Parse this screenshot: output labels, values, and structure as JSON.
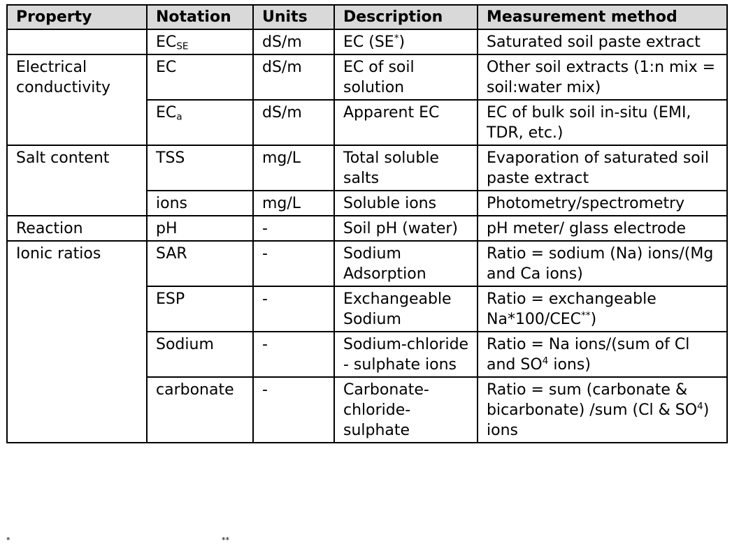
{
  "headers": [
    "Property",
    "Notation",
    "Units",
    "Description",
    "Measurement method"
  ],
  "groups": {
    "ec": "Electrical conductivity",
    "salt": "Salt content",
    "reaction": "Reaction",
    "ionic": "Ionic ratios"
  },
  "rows": {
    "ecse": {
      "notation_base": "EC",
      "notation_sub": "SE",
      "units": "dS/m",
      "desc_text": "EC (SE",
      "desc_sup": "*",
      "desc_close": ")",
      "method": "Saturated soil paste extract"
    },
    "ec": {
      "notation": "EC",
      "units": "dS/m",
      "desc": "EC of soil solution",
      "method": "Other soil extracts (1:n mix = soil:water mix)"
    },
    "eca": {
      "notation_base": "EC",
      "notation_sub": "a",
      "units": "dS/m",
      "desc": "Apparent EC",
      "method": "EC of bulk soil in-situ (EMI, TDR, etc.)"
    },
    "tss": {
      "notation": "TSS",
      "units": "mg/L",
      "desc": "Total soluble salts",
      "method": "Evaporation of saturated soil paste extract"
    },
    "ions": {
      "notation": "ions",
      "units": "mg/L",
      "desc": "Soluble ions",
      "method": "Photometry/spectrometry"
    },
    "ph": {
      "notation": "pH",
      "units": "-",
      "desc": "Soil pH (water)",
      "method": "pH meter/ glass electrode"
    },
    "sar": {
      "notation": "SAR",
      "units": "-",
      "desc": "Sodium Adsorption",
      "method": "Ratio = sodium (Na) ions/(Mg and Ca ions)"
    },
    "esp": {
      "notation": "ESP",
      "units": "-",
      "desc": "Exchangeable Sodium",
      "method_text": "Ratio = exchangeable Na*100/CEC",
      "method_sup": "**",
      "method_close": ")"
    },
    "sodium": {
      "notation": "Sodium",
      "units": "-",
      "desc": "Sodium-chloride - sulphate ions",
      "method_text": "Ratio = Na ions/(sum of Cl and SO",
      "method_sup": "4",
      "method_close": " ions)"
    },
    "carbonate": {
      "notation": "carbonate",
      "units": "-",
      "desc": "Carbonate-chloride-sulphate",
      "method_text": "Ratio = sum (carbonate & bicarbonate) /sum (Cl & SO",
      "method_sup": "4",
      "method_close": ") ions"
    }
  },
  "footer": {
    "note_a": "*",
    "note_b": "**"
  }
}
